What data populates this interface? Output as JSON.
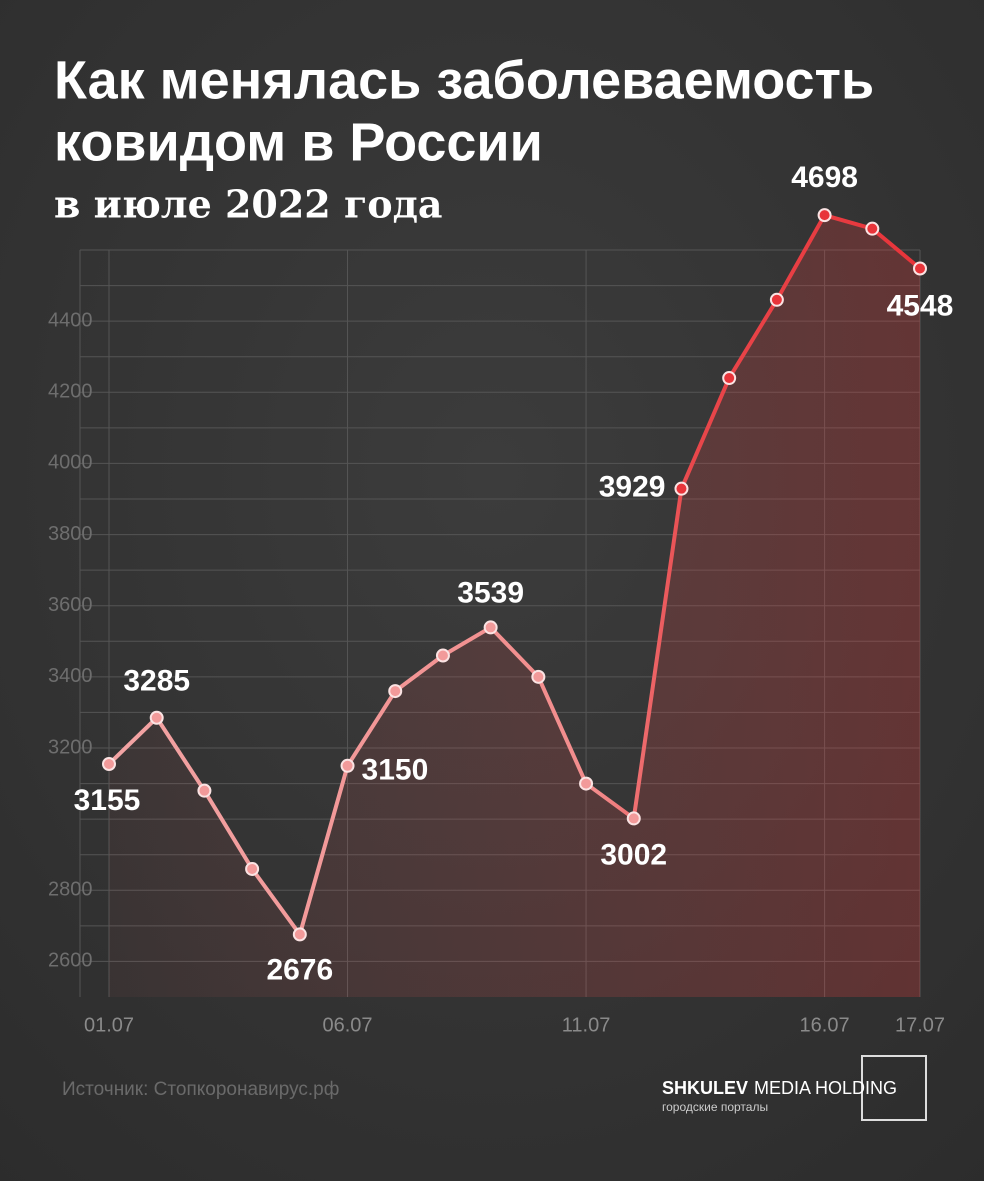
{
  "chart_data": {
    "type": "line",
    "title": [
      "Как менялась заболеваемость",
      "ковидом в России"
    ],
    "subtitle": "в июле 2022 года",
    "source": "Источник: Стопкоронавирус.рф",
    "categories": [
      "01.07",
      null,
      null,
      null,
      null,
      "06.07",
      null,
      null,
      null,
      null,
      "11.07",
      null,
      null,
      null,
      null,
      "16.07",
      null,
      "17.07"
    ],
    "series": [
      {
        "name": "Заболеваемость",
        "color": "#e8343a",
        "values": [
          3155,
          3285,
          3080,
          2860,
          2676,
          3150,
          3360,
          3460,
          3539,
          3400,
          3100,
          3002,
          3929,
          4240,
          4460,
          4698,
          4660,
          4548
        ],
        "value_labels": [
          "3155",
          "3285",
          null,
          null,
          "2676",
          "3150",
          null,
          null,
          "3539",
          null,
          null,
          "3002",
          "3929",
          null,
          null,
          "4698",
          null,
          "4548"
        ]
      }
    ],
    "ylim": [
      2500,
      4600
    ],
    "yticks": [
      2600,
      {
        "value": 2700,
        "label": null
      },
      2800,
      {
        "value": 2900,
        "label": null
      },
      {
        "value": 3000,
        "label": null
      },
      {
        "value": 3100,
        "label": null
      },
      3200,
      {
        "value": 3300,
        "label": null
      },
      3400,
      {
        "value": 3500,
        "label": null
      },
      3600,
      {
        "value": 3700,
        "label": null
      },
      3800,
      {
        "value": 3900,
        "label": null
      },
      4000,
      {
        "value": 4100,
        "label": null
      },
      4200,
      {
        "value": 4300,
        "label": null
      },
      4400,
      {
        "value": 4500,
        "label": null
      },
      {
        "value": 4600,
        "label": null
      }
    ],
    "grid": true
  },
  "logo": {
    "name": "SHKULEV",
    "text": "MEDIA HOLDING",
    "tagline": "городские порталы"
  }
}
